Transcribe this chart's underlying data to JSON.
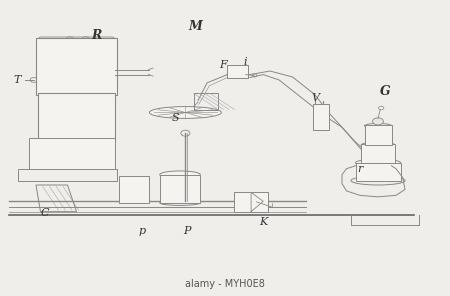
{
  "bg_color": "#f0eeeb",
  "line_color": "#888888",
  "dark_line": "#555555",
  "labels": {
    "R": [
      0.215,
      0.88,
      9,
      "bold"
    ],
    "T": [
      0.038,
      0.73,
      8,
      "normal"
    ],
    "M": [
      0.435,
      0.91,
      9,
      "bold"
    ],
    "S": [
      0.39,
      0.6,
      8,
      "normal"
    ],
    "F": [
      0.495,
      0.78,
      8,
      "normal"
    ],
    "i": [
      0.545,
      0.79,
      8,
      "normal"
    ],
    "V": [
      0.7,
      0.67,
      8,
      "normal"
    ],
    "G": [
      0.855,
      0.69,
      9,
      "bold"
    ],
    "r": [
      0.8,
      0.43,
      8,
      "normal"
    ],
    "C": [
      0.1,
      0.28,
      8,
      "normal"
    ],
    "p": [
      0.315,
      0.22,
      8,
      "normal"
    ],
    "P": [
      0.415,
      0.22,
      8,
      "normal"
    ],
    "K": [
      0.585,
      0.25,
      8,
      "normal"
    ]
  },
  "alamy_text": "alamy - MYH0E8",
  "figsize": [
    4.5,
    2.96
  ],
  "dpi": 100
}
